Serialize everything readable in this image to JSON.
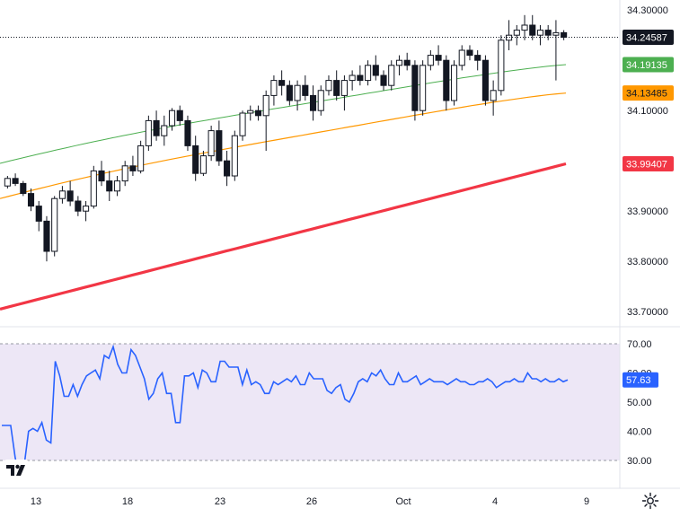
{
  "chart_data": [
    {
      "type": "candlestick",
      "title": "",
      "price_axis": {
        "ticks": [
          "34.30000",
          "34.10000",
          "33.90000",
          "33.80000",
          "33.70000"
        ],
        "tick_values": [
          34.3,
          34.1,
          33.9,
          33.8,
          33.7
        ],
        "ylim": [
          33.67,
          34.32
        ]
      },
      "time_axis": {
        "labels": [
          "13",
          "18",
          "23",
          "26",
          "Oct",
          "4",
          "9"
        ]
      },
      "last_price": {
        "value": "34.24587",
        "color": "#131722"
      },
      "moving_averages": [
        {
          "label": "34.19135",
          "color": "#4caf50",
          "start": 33.995,
          "end": 34.19135
        },
        {
          "label": "34.13485",
          "color": "#ff9800",
          "start": 33.925,
          "end": 34.13485
        },
        {
          "label": "33.99407",
          "color": "#f23645",
          "start": 33.705,
          "end": 33.99407
        }
      ],
      "candles": [
        [
          33.95,
          33.97,
          33.945,
          33.965
        ],
        [
          33.965,
          33.975,
          33.95,
          33.955
        ],
        [
          33.955,
          33.96,
          33.93,
          33.935
        ],
        [
          33.935,
          33.945,
          33.9,
          33.91
        ],
        [
          33.91,
          33.92,
          33.86,
          33.88
        ],
        [
          33.88,
          33.89,
          33.8,
          33.82
        ],
        [
          33.82,
          33.93,
          33.81,
          33.925
        ],
        [
          33.925,
          33.95,
          33.915,
          33.94
        ],
        [
          33.94,
          33.96,
          33.91,
          33.92
        ],
        [
          33.92,
          33.93,
          33.89,
          33.9
        ],
        [
          33.9,
          33.92,
          33.88,
          33.91
        ],
        [
          33.91,
          33.99,
          33.905,
          33.98
        ],
        [
          33.98,
          34.0,
          33.95,
          33.96
        ],
        [
          33.96,
          33.98,
          33.92,
          33.94
        ],
        [
          33.94,
          33.97,
          33.93,
          33.96
        ],
        [
          33.96,
          34.0,
          33.95,
          33.99
        ],
        [
          33.99,
          34.01,
          33.97,
          33.98
        ],
        [
          33.98,
          34.04,
          33.975,
          34.03
        ],
        [
          34.03,
          34.09,
          34.02,
          34.08
        ],
        [
          34.08,
          34.1,
          34.04,
          34.05
        ],
        [
          34.05,
          34.09,
          34.03,
          34.07
        ],
        [
          34.07,
          34.105,
          34.06,
          34.1
        ],
        [
          34.1,
          34.11,
          34.07,
          34.08
        ],
        [
          34.08,
          34.09,
          34.02,
          34.03
        ],
        [
          34.03,
          34.05,
          33.96,
          33.975
        ],
        [
          33.975,
          34.02,
          33.97,
          34.01
        ],
        [
          34.01,
          34.07,
          34.0,
          34.06
        ],
        [
          34.06,
          34.08,
          33.99,
          34.0
        ],
        [
          34.0,
          34.02,
          33.95,
          33.97
        ],
        [
          33.97,
          34.06,
          33.96,
          34.05
        ],
        [
          34.05,
          34.1,
          34.04,
          34.095
        ],
        [
          34.095,
          34.11,
          34.08,
          34.1
        ],
        [
          34.1,
          34.11,
          34.08,
          34.09
        ],
        [
          34.09,
          34.14,
          34.02,
          34.13
        ],
        [
          34.13,
          34.17,
          34.11,
          34.16
        ],
        [
          34.16,
          34.18,
          34.13,
          34.15
        ],
        [
          34.15,
          34.16,
          34.11,
          34.12
        ],
        [
          34.12,
          34.16,
          34.1,
          34.15
        ],
        [
          34.15,
          34.17,
          34.12,
          34.13
        ],
        [
          34.13,
          34.15,
          34.08,
          34.1
        ],
        [
          34.1,
          34.15,
          34.09,
          34.14
        ],
        [
          34.14,
          34.17,
          34.13,
          34.16
        ],
        [
          34.16,
          34.18,
          34.12,
          34.13
        ],
        [
          34.13,
          34.17,
          34.1,
          34.16
        ],
        [
          34.16,
          34.18,
          34.14,
          34.17
        ],
        [
          34.17,
          34.19,
          34.15,
          34.16
        ],
        [
          34.16,
          34.2,
          34.15,
          34.19
        ],
        [
          34.19,
          34.21,
          34.16,
          34.17
        ],
        [
          34.17,
          34.18,
          34.14,
          34.15
        ],
        [
          34.15,
          34.2,
          34.14,
          34.19
        ],
        [
          34.19,
          34.21,
          34.17,
          34.2
        ],
        [
          34.2,
          34.215,
          34.18,
          34.19
        ],
        [
          34.19,
          34.2,
          34.08,
          34.1
        ],
        [
          34.1,
          34.2,
          34.09,
          34.19
        ],
        [
          34.19,
          34.22,
          34.18,
          34.21
        ],
        [
          34.21,
          34.23,
          34.19,
          34.2
        ],
        [
          34.2,
          34.21,
          34.1,
          34.12
        ],
        [
          34.12,
          34.2,
          34.11,
          34.19
        ],
        [
          34.19,
          34.23,
          34.18,
          34.22
        ],
        [
          34.22,
          34.23,
          34.2,
          34.21
        ],
        [
          34.21,
          34.22,
          34.18,
          34.2
        ],
        [
          34.2,
          34.21,
          34.11,
          34.12
        ],
        [
          34.12,
          34.16,
          34.09,
          34.14
        ],
        [
          34.14,
          34.25,
          34.13,
          34.24
        ],
        [
          34.24,
          34.28,
          34.22,
          34.25
        ],
        [
          34.25,
          34.27,
          34.23,
          34.26
        ],
        [
          34.26,
          34.29,
          34.24,
          34.27
        ],
        [
          34.27,
          34.29,
          34.24,
          34.25
        ],
        [
          34.25,
          34.27,
          34.23,
          34.26
        ],
        [
          34.26,
          34.27,
          34.24,
          34.25
        ],
        [
          34.25,
          34.28,
          34.16,
          34.255
        ],
        [
          34.255,
          34.26,
          34.24,
          34.24587
        ]
      ]
    },
    {
      "type": "line",
      "title": "",
      "yticks": [
        "70.00",
        "60.00",
        "50.00",
        "40.00",
        "30.00"
      ],
      "ytick_values": [
        70,
        60,
        50,
        40,
        30
      ],
      "band": [
        30,
        70
      ],
      "ylim": [
        26,
        72
      ],
      "last_value": "57.63",
      "color": "#2962ff",
      "values": [
        42,
        42,
        42,
        31,
        24,
        28,
        40,
        41,
        40,
        43,
        37,
        36,
        64,
        59,
        52,
        52,
        56,
        52,
        56,
        59,
        60,
        61,
        58,
        66,
        65,
        69,
        63,
        60,
        60,
        68,
        66,
        62,
        58,
        51,
        53,
        58,
        60,
        53,
        53,
        43,
        43,
        59,
        59,
        60,
        55,
        61,
        60,
        57,
        57,
        64,
        64,
        62,
        62,
        62,
        56,
        61,
        56,
        57,
        56,
        53,
        53,
        57,
        56,
        57,
        58,
        57,
        59,
        56,
        56,
        60,
        58,
        58,
        58,
        54,
        53,
        55,
        56,
        51,
        50,
        53,
        57,
        58,
        57,
        60,
        59,
        61,
        58,
        56,
        56,
        60,
        57,
        57,
        58,
        59,
        56,
        57,
        58,
        57,
        57,
        57,
        56,
        57,
        58,
        57,
        57,
        56,
        56,
        57,
        57,
        58,
        57,
        55,
        56,
        57,
        57,
        58,
        57,
        57,
        60,
        58,
        58,
        57,
        58,
        57,
        57,
        58,
        57,
        57.63
      ]
    }
  ]
}
